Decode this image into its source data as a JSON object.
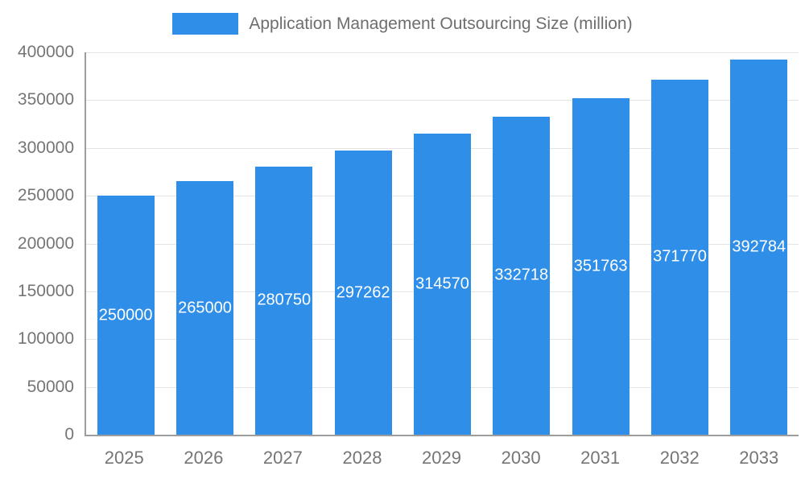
{
  "chart_data": {
    "type": "bar",
    "title": "Application Management Outsourcing Size (million)",
    "categories": [
      "2025",
      "2026",
      "2027",
      "2028",
      "2029",
      "2030",
      "2031",
      "2032",
      "2033"
    ],
    "values": [
      250000,
      265000,
      280750,
      297262,
      314570,
      332718,
      351763,
      371770,
      392784
    ],
    "xlabel": "",
    "ylabel": "",
    "ylim": [
      0,
      400000
    ],
    "ytick_step": 50000,
    "ytick_labels": [
      "0",
      "50000",
      "100000",
      "150000",
      "200000",
      "250000",
      "300000",
      "350000",
      "400000"
    ],
    "grid": true,
    "legend_position": "top",
    "bar_color": "#2f8fe8",
    "value_label_color": "#ffffff",
    "axis_text_color": "#757575"
  }
}
